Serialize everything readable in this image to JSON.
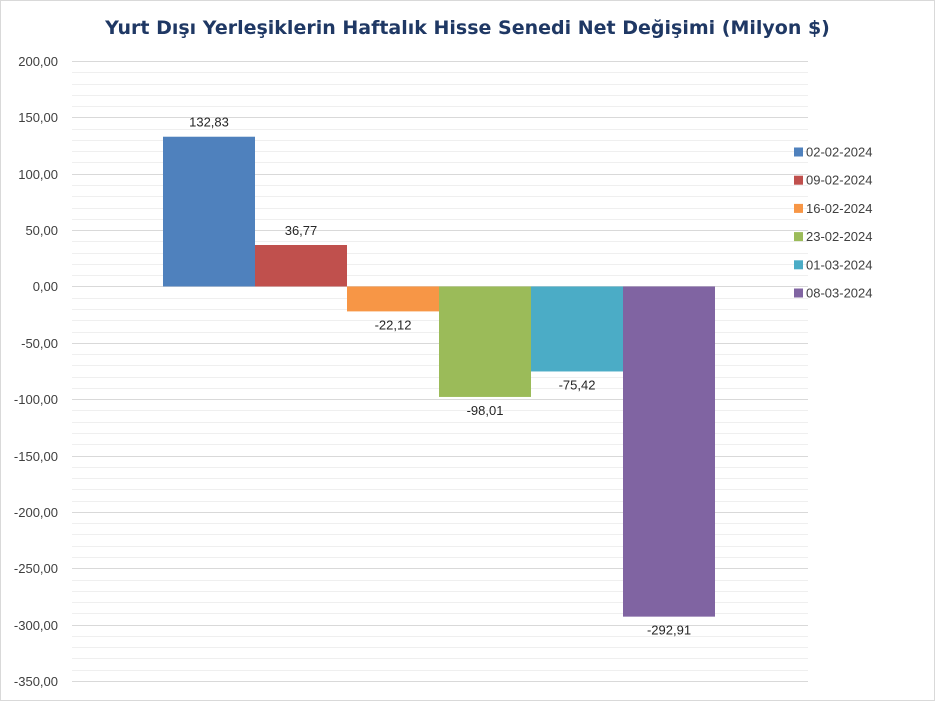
{
  "chart_data": {
    "type": "bar",
    "title": "Yurt Dışı Yerleşiklerin Haftalık Hisse Senedi Net Değişimi (Milyon $)",
    "xlabel": "",
    "ylabel": "",
    "ylim": [
      -350,
      200
    ],
    "yticks": [
      200,
      150,
      100,
      50,
      0,
      -50,
      -100,
      -150,
      -200,
      -250,
      -300,
      -350
    ],
    "ytick_labels": [
      "200,00",
      "150,00",
      "100,00",
      "50,00",
      "0,00",
      "-50,00",
      "-100,00",
      "-150,00",
      "-200,00",
      "-250,00",
      "-300,00",
      "-350,00"
    ],
    "grid": true,
    "legend_position": "right",
    "series": [
      {
        "name": "02-02-2024",
        "value": 132.83,
        "label": "132,83",
        "color": "#4f81bd"
      },
      {
        "name": "09-02-2024",
        "value": 36.77,
        "label": "36,77",
        "color": "#c0504d"
      },
      {
        "name": "16-02-2024",
        "value": -22.12,
        "label": "-22,12",
        "color": "#f79646"
      },
      {
        "name": "23-02-2024",
        "value": -98.01,
        "label": "-98,01",
        "color": "#9bbb59"
      },
      {
        "name": "01-03-2024",
        "value": -75.42,
        "label": "-75,42",
        "color": "#4bacc6"
      },
      {
        "name": "08-03-2024",
        "value": -292.91,
        "label": "-292,91",
        "color": "#8064a2"
      }
    ]
  }
}
